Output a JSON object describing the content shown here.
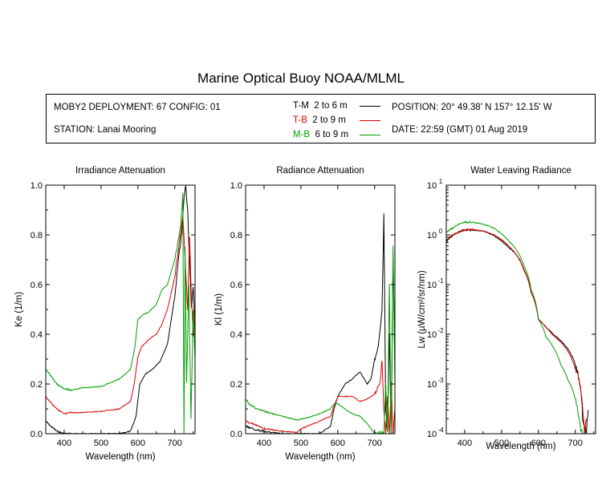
{
  "title": "Marine Optical Buoy NOAA/MLML",
  "info": {
    "deployment": "MOBY2 DEPLOYMENT: 67 CONFIG: 01",
    "station": "STATION: Lanai Mooring",
    "position": "POSITION: 20° 49.38' N  157° 12.15' W",
    "date": "DATE: 22:59 (GMT) 01 Aug 2019"
  },
  "legend": [
    {
      "name": "T-M",
      "range": "2 to 6  m",
      "color": "#000000"
    },
    {
      "name": "T-B",
      "range": "2 to 9  m",
      "color": "#dd0000"
    },
    {
      "name": "M-B",
      "range": "6 to 9  m",
      "color": "#00a000"
    }
  ],
  "chart_data": [
    {
      "type": "line",
      "title": "Irradiance Attenuation",
      "xlabel": "Wavelength (nm)",
      "ylabel": "Ke  (1/m)",
      "xlim": [
        350,
        755
      ],
      "ylim": [
        0,
        1.0
      ],
      "xticks": [
        400,
        500,
        600,
        700
      ],
      "yticks": [
        "0.0",
        "0.2",
        "0.4",
        "0.6",
        "0.8",
        "1.0"
      ],
      "series": [
        {
          "name": "T-M",
          "color": "#000000",
          "x": [
            350,
            360,
            380,
            400,
            420,
            450,
            500,
            550,
            580,
            595,
            605,
            620,
            640,
            660,
            680,
            700,
            710,
            720,
            725,
            730,
            735,
            740,
            745,
            750,
            755
          ],
          "y": [
            0.05,
            0.035,
            0.01,
            0.0,
            0.0,
            0.0,
            0.0,
            0.0,
            0.01,
            0.07,
            0.2,
            0.24,
            0.26,
            0.29,
            0.36,
            0.55,
            0.7,
            0.82,
            0.95,
            1.0,
            0.9,
            0.7,
            0.5,
            0.6,
            0.4
          ]
        },
        {
          "name": "T-B",
          "color": "#dd0000",
          "x": [
            350,
            360,
            380,
            400,
            420,
            450,
            500,
            550,
            580,
            590,
            600,
            610,
            630,
            650,
            665,
            680,
            700,
            715,
            722,
            728,
            735,
            740,
            745,
            750,
            755
          ],
          "y": [
            0.15,
            0.13,
            0.1,
            0.08,
            0.085,
            0.085,
            0.09,
            0.1,
            0.13,
            0.2,
            0.31,
            0.35,
            0.38,
            0.4,
            0.44,
            0.5,
            0.63,
            0.8,
            0.88,
            0.7,
            0.5,
            0.8,
            0.55,
            0.4,
            0.5
          ]
        },
        {
          "name": "M-B",
          "color": "#00a000",
          "x": [
            350,
            360,
            380,
            400,
            420,
            450,
            500,
            550,
            580,
            592,
            600,
            615,
            630,
            650,
            665,
            680,
            700,
            715,
            722,
            725,
            728,
            732,
            738,
            744,
            750,
            755
          ],
          "y": [
            0.26,
            0.24,
            0.2,
            0.18,
            0.175,
            0.185,
            0.19,
            0.22,
            0.26,
            0.35,
            0.46,
            0.48,
            0.49,
            0.52,
            0.58,
            0.6,
            0.7,
            0.82,
            0.97,
            0.0,
            0.75,
            0.2,
            0.6,
            0.05,
            0.5,
            0.3
          ]
        }
      ]
    },
    {
      "type": "line",
      "title": "Radiance Attenuation",
      "xlabel": "Wavelength (nm)",
      "ylabel": "Kl  (1/m)",
      "xlim": [
        350,
        755
      ],
      "ylim": [
        0,
        1.0
      ],
      "xticks": [
        400,
        500,
        600,
        700
      ],
      "yticks": [
        "0.0",
        "0.2",
        "0.4",
        "0.6",
        "0.8",
        "1.0"
      ],
      "series": [
        {
          "name": "T-M",
          "color": "#000000",
          "x": [
            350,
            360,
            380,
            400,
            450,
            500,
            550,
            580,
            590,
            600,
            620,
            640,
            660,
            680,
            690,
            700,
            710,
            720,
            725,
            730,
            735,
            740,
            745,
            750,
            755
          ],
          "y": [
            0.03,
            0.025,
            0.015,
            0.01,
            0.0,
            0.0,
            0.0,
            0.03,
            0.1,
            0.15,
            0.2,
            0.22,
            0.25,
            0.2,
            0.22,
            0.3,
            0.35,
            0.5,
            0.88,
            0.1,
            0.0,
            0.4,
            0.0,
            0.7,
            0.3
          ]
        },
        {
          "name": "T-B",
          "color": "#dd0000",
          "x": [
            350,
            360,
            380,
            400,
            450,
            490,
            500,
            550,
            580,
            590,
            600,
            620,
            640,
            660,
            680,
            700,
            715,
            720,
            725,
            730,
            735,
            740,
            745,
            750,
            755
          ],
          "y": [
            0.05,
            0.045,
            0.035,
            0.02,
            0.01,
            0.005,
            0.02,
            0.05,
            0.07,
            0.11,
            0.15,
            0.15,
            0.15,
            0.13,
            0.14,
            0.16,
            0.2,
            0.3,
            0.1,
            0.0,
            0.15,
            0.0,
            0.2,
            0.0,
            0.1
          ]
        },
        {
          "name": "M-B",
          "color": "#00a000",
          "x": [
            350,
            360,
            380,
            400,
            450,
            490,
            520,
            550,
            580,
            590,
            600,
            620,
            640,
            660,
            680,
            700,
            710,
            715,
            720,
            725,
            730,
            735,
            740,
            745,
            750,
            755
          ],
          "y": [
            0.14,
            0.12,
            0.1,
            0.09,
            0.07,
            0.055,
            0.065,
            0.08,
            0.1,
            0.12,
            0.12,
            0.1,
            0.08,
            0.07,
            0.04,
            0.0,
            0.0,
            0.0,
            0.0,
            0.0,
            0.2,
            0.0,
            0.6,
            0.0,
            0.75,
            0.2
          ]
        }
      ]
    },
    {
      "type": "line",
      "title": "Water Leaving Radiance",
      "xlabel": "Wavelength (nm)",
      "ylabel": "Lw  (µW/cm²/sr/nm)",
      "log_y": true,
      "xlim": [
        350,
        755
      ],
      "ylim": [
        0.0001,
        10
      ],
      "xticks": [
        400,
        500,
        600,
        700
      ],
      "yticks_exp": [
        1,
        0,
        -1,
        -2,
        -3,
        -4
      ],
      "series": [
        {
          "name": "T-M",
          "color": "#000000",
          "x": [
            350,
            360,
            370,
            380,
            390,
            400,
            420,
            450,
            480,
            500,
            520,
            540,
            560,
            580,
            600,
            620,
            640,
            660,
            680,
            700,
            710,
            720,
            730,
            735
          ],
          "y": [
            0.7,
            0.9,
            1.0,
            1.1,
            1.2,
            1.25,
            1.25,
            1.2,
            0.95,
            0.75,
            0.55,
            0.4,
            0.2,
            0.07,
            0.02,
            0.014,
            0.01,
            0.0075,
            0.005,
            0.0025,
            0.0012,
            0.0002,
            0.0001,
            0.0003
          ]
        },
        {
          "name": "T-B",
          "color": "#dd0000",
          "x": [
            350,
            360,
            370,
            380,
            390,
            400,
            420,
            450,
            480,
            500,
            520,
            540,
            560,
            580,
            600,
            620,
            640,
            660,
            680,
            700,
            710,
            720,
            725,
            730
          ],
          "y": [
            0.8,
            0.9,
            1.0,
            1.1,
            1.2,
            1.25,
            1.3,
            1.2,
            1.0,
            0.8,
            0.6,
            0.4,
            0.21,
            0.07,
            0.02,
            0.014,
            0.0095,
            0.007,
            0.0045,
            0.002,
            0.0012,
            0.0003,
            0.0001,
            0.0002
          ]
        },
        {
          "name": "M-B",
          "color": "#00a000",
          "x": [
            350,
            360,
            370,
            380,
            390,
            400,
            420,
            450,
            480,
            500,
            520,
            540,
            560,
            580,
            600,
            620,
            640,
            660,
            680,
            700,
            710,
            715,
            720
          ],
          "y": [
            1.1,
            1.3,
            1.4,
            1.6,
            1.7,
            1.8,
            1.8,
            1.65,
            1.35,
            1.05,
            0.75,
            0.5,
            0.25,
            0.08,
            0.02,
            0.009,
            0.0055,
            0.0025,
            0.0012,
            0.0005,
            0.0002,
            0.00012,
            0.0001
          ]
        }
      ]
    }
  ]
}
